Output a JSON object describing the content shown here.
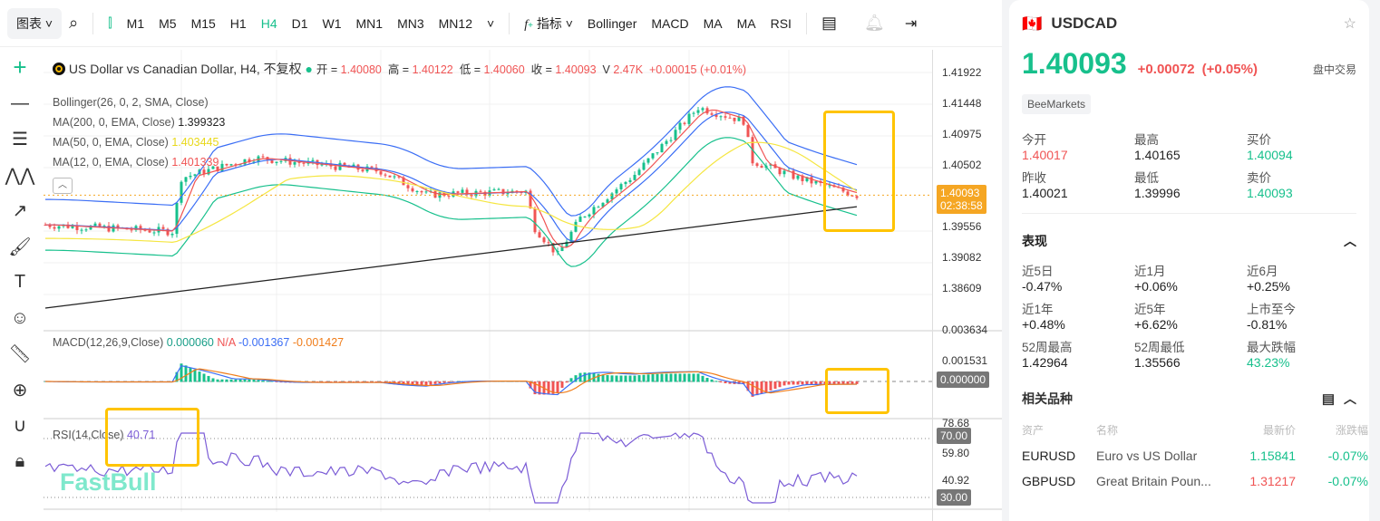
{
  "toolbar": {
    "chart_menu": "图表",
    "timeframes": [
      "M1",
      "M5",
      "M15",
      "H1",
      "H4",
      "D1",
      "W1",
      "MN1",
      "MN3",
      "MN12"
    ],
    "active_timeframe": "H4",
    "indicators_label": "指标",
    "indicator_shortcuts": [
      "Bollinger",
      "MACD",
      "MA",
      "MA",
      "RSI"
    ]
  },
  "legend": {
    "title": "US Dollar vs Canadian Dollar, H4, 不复权",
    "open_label": "开 =",
    "open": "1.40080",
    "high_label": "高 =",
    "high": "1.40122",
    "low_label": "低 =",
    "low": "1.40060",
    "close_label": "收 =",
    "close": "1.40093",
    "vol_label": "V",
    "volume": "2.47K",
    "change": "+0.00015 (+0.01%)",
    "bollinger": "Bollinger(26, 0, 2, SMA, Close)",
    "ma200": "MA(200, 0, EMA, Close)",
    "ma200_val": "1.399323",
    "ma50": "MA(50, 0, EMA, Close)",
    "ma50_val": "1.403445",
    "ma12": "MA(12, 0, EMA, Close)",
    "ma12_val": "1.401339",
    "macd": "MACD(12,26,9,Close)",
    "macd_hist": "0.000060",
    "macd_na": "N/A",
    "macd_line": "-0.001367",
    "macd_signal": "-0.001427",
    "rsi": "RSI(14,Close)",
    "rsi_val": "40.71"
  },
  "price_axis": [
    "1.41922",
    "1.41448",
    "1.40975",
    "1.40502",
    "1.39556",
    "1.39082",
    "1.38609"
  ],
  "current_price": "1.40093",
  "countdown": "02:38:58",
  "macd_axis": [
    "0.003634",
    "0.001531"
  ],
  "macd_zero": "0.000000",
  "rsi_axis": [
    "78.68",
    "59.80",
    "40.92"
  ],
  "rsi_70": "70.00",
  "rsi_30": "30.00",
  "watermark": "FastBull",
  "colors": {
    "up": "#17c08c",
    "down": "#f05454",
    "accent": "#ffc400",
    "bb": "#3b6ef5",
    "ma50": "#f5e642",
    "ma12": "#f05454",
    "ma200": "#222222",
    "rsi": "#7b5cd6",
    "macd_signal": "#f07d1a"
  },
  "panel": {
    "symbol": "USDCAD",
    "price": "1.40093",
    "change": "+0.00072",
    "change_pct": "(+0.05%)",
    "session": "盘中交易",
    "broker": "BeeMarkets",
    "stats": [
      {
        "label": "今开",
        "value": "1.40017",
        "color": "red"
      },
      {
        "label": "最高",
        "value": "1.40165",
        "color": ""
      },
      {
        "label": "买价",
        "value": "1.40094",
        "color": "green"
      },
      {
        "label": "昨收",
        "value": "1.40021",
        "color": ""
      },
      {
        "label": "最低",
        "value": "1.39996",
        "color": ""
      },
      {
        "label": "卖价",
        "value": "1.40093",
        "color": "green"
      }
    ],
    "performance_title": "表现",
    "performance": [
      {
        "label": "近5日",
        "value": "-0.47%"
      },
      {
        "label": "近1月",
        "value": "+0.06%"
      },
      {
        "label": "近6月",
        "value": "+0.25%"
      },
      {
        "label": "近1年",
        "value": "+0.48%"
      },
      {
        "label": "近5年",
        "value": "+6.62%"
      },
      {
        "label": "上市至今",
        "value": "-0.81%"
      },
      {
        "label": "52周最高",
        "value": "1.42964"
      },
      {
        "label": "52周最低",
        "value": "1.35566"
      },
      {
        "label": "最大跌幅",
        "value": "43.23%",
        "color": "green"
      }
    ],
    "related_title": "相关品种",
    "related_headers": [
      "资产",
      "名称",
      "最新价",
      "涨跌幅"
    ],
    "related": [
      {
        "asset": "EURUSD",
        "name": "Euro vs US Dollar",
        "price": "1.15841",
        "price_color": "green",
        "change": "-0.07%"
      },
      {
        "asset": "GBPUSD",
        "name": "Great Britain Poun...",
        "price": "1.31217",
        "price_color": "red",
        "change": "-0.07%"
      }
    ]
  }
}
